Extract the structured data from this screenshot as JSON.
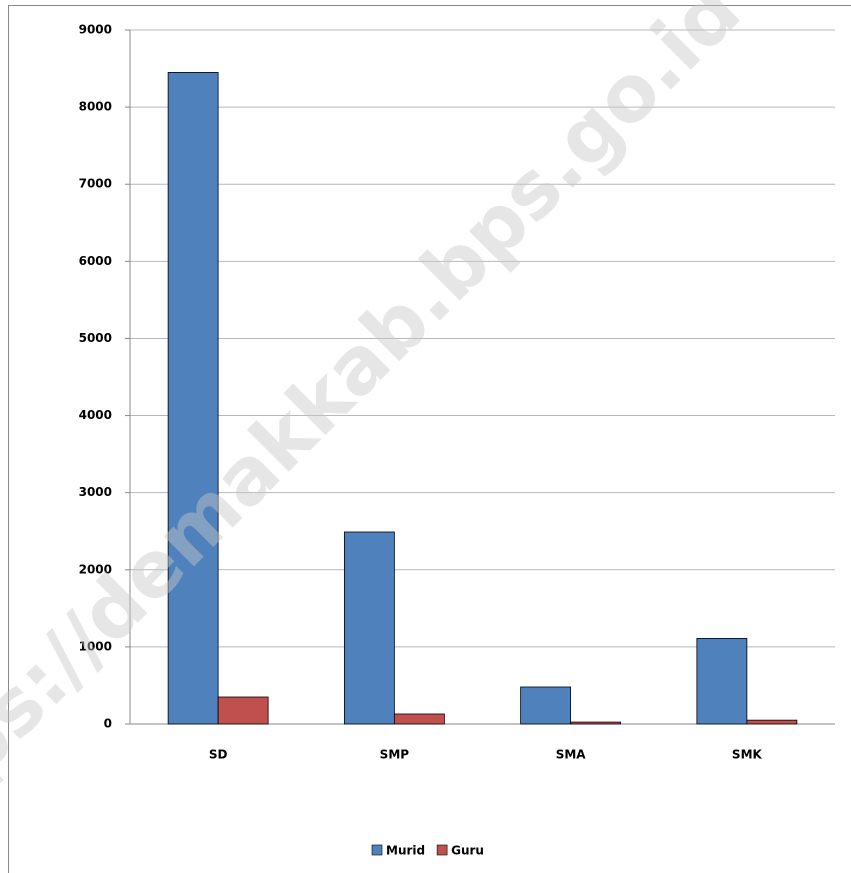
{
  "chart_data": {
    "type": "bar",
    "watermark": "https://demakkab.bps.go.id",
    "categories": [
      "SD",
      "SMP",
      "SMA",
      "SMK"
    ],
    "series": [
      {
        "name": "Murid",
        "color": "#4f81bd",
        "values": [
          8450,
          2490,
          480,
          1110
        ]
      },
      {
        "name": "Guru",
        "color": "#c0504d",
        "values": [
          350,
          130,
          25,
          50
        ]
      }
    ],
    "ylim": [
      0,
      9000
    ],
    "yticks": [
      0,
      1000,
      2000,
      3000,
      4000,
      5000,
      6000,
      7000,
      8000,
      9000
    ],
    "grid": true,
    "legend": "bottom"
  }
}
